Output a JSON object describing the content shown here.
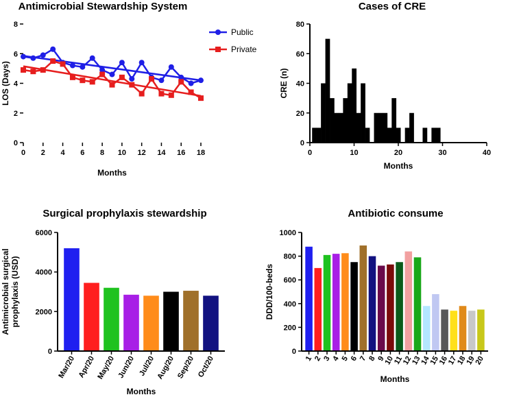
{
  "chart_data": [
    {
      "id": "los",
      "type": "line",
      "title": "Antimicrobial Stewardship System",
      "xlabel": "Months",
      "ylabel": "LOS (Days)",
      "xlim": [
        0,
        18
      ],
      "ylim": [
        0,
        8
      ],
      "xticks": [
        0,
        2,
        4,
        6,
        8,
        10,
        12,
        14,
        16,
        18
      ],
      "yticks": [
        0,
        2,
        4,
        6,
        8
      ],
      "legend_position": "top-right",
      "series": [
        {
          "name": "Public",
          "color": "#1f1fe6",
          "marker": "circle",
          "x": [
            0,
            1,
            2,
            3,
            4,
            5,
            6,
            7,
            8,
            9,
            10,
            11,
            12,
            13,
            14,
            15,
            16,
            17,
            18
          ],
          "values": [
            5.8,
            5.7,
            5.9,
            6.3,
            5.4,
            5.2,
            5.1,
            5.7,
            4.9,
            4.6,
            5.4,
            4.3,
            5.4,
            4.4,
            4.2,
            5.1,
            4.4,
            4.0,
            4.2
          ],
          "trend": [
            5.85,
            4.2
          ]
        },
        {
          "name": "Private",
          "color": "#e61e1e",
          "marker": "square",
          "x": [
            0,
            1,
            2,
            3,
            4,
            5,
            6,
            7,
            8,
            9,
            10,
            11,
            12,
            13,
            14,
            15,
            16,
            17,
            18
          ],
          "values": [
            4.9,
            4.8,
            4.9,
            5.5,
            5.3,
            4.4,
            4.2,
            4.1,
            4.6,
            3.9,
            4.4,
            3.9,
            3.3,
            4.3,
            3.3,
            3.2,
            4.1,
            3.4,
            3.0
          ],
          "trend": [
            5.15,
            3.15
          ]
        }
      ]
    },
    {
      "id": "cre",
      "type": "bar",
      "title": "Cases of CRE",
      "xlabel": "Months",
      "ylabel": "CRE (n)",
      "xlim": [
        0,
        40
      ],
      "ylim": [
        0,
        80
      ],
      "xticks": [
        0,
        10,
        20,
        30,
        40
      ],
      "yticks": [
        0,
        20,
        40,
        60,
        80
      ],
      "color": "#000000",
      "x": [
        1,
        2,
        3,
        4,
        5,
        6,
        7,
        8,
        9,
        10,
        11,
        12,
        13,
        14,
        15,
        16,
        17,
        18,
        19,
        20,
        21,
        22,
        23,
        24,
        25,
        26,
        27,
        28,
        29
      ],
      "values": [
        10,
        10,
        40,
        70,
        30,
        20,
        20,
        30,
        40,
        50,
        20,
        40,
        10,
        0,
        20,
        20,
        20,
        10,
        30,
        10,
        0,
        10,
        20,
        0,
        0,
        10,
        0,
        10,
        10
      ]
    },
    {
      "id": "surgical",
      "type": "bar",
      "title": "Surgical prophylaxis stewardship",
      "xlabel": "Months",
      "ylabel": [
        "Antimicrobial surgical",
        "prophylaxis (USD)"
      ],
      "ylim": [
        0,
        6000
      ],
      "yticks": [
        0,
        2000,
        4000,
        6000
      ],
      "categories": [
        "Mar/20",
        "Apr/20",
        "May/20",
        "Jun/20",
        "Jul/20",
        "Aug/20",
        "Sep/20",
        "Oct/20"
      ],
      "values": [
        5200,
        3450,
        3200,
        2850,
        2800,
        3000,
        3050,
        2800
      ],
      "colors": [
        "#1f1ff0",
        "#ff1f1f",
        "#1fc21f",
        "#a81fe6",
        "#ff8c1a",
        "#000000",
        "#a0702a",
        "#121280"
      ]
    },
    {
      "id": "antibiotic",
      "type": "bar",
      "title": "Antibiotic consume",
      "xlabel": "Months",
      "ylabel": "DDD/100-beds",
      "ylim": [
        0,
        1000
      ],
      "yticks": [
        0,
        200,
        400,
        600,
        800,
        1000
      ],
      "categories": [
        "1",
        "2",
        "3",
        "4",
        "5",
        "6",
        "7",
        "8",
        "9",
        "10",
        "11",
        "12",
        "13",
        "14",
        "15",
        "16",
        "17",
        "18",
        "19",
        "20"
      ],
      "values": [
        880,
        700,
        810,
        820,
        825,
        750,
        890,
        800,
        720,
        730,
        750,
        840,
        790,
        380,
        480,
        350,
        340,
        380,
        340,
        350
      ],
      "colors": [
        "#1f1ff0",
        "#ff1f1f",
        "#1fc21f",
        "#a81fe6",
        "#ff8c1a",
        "#000000",
        "#a0702a",
        "#121280",
        "#6a0a4a",
        "#7a0a0a",
        "#0a5a1a",
        "#f2a0a0",
        "#1aa81a",
        "#b4e6ff",
        "#c0c8f2",
        "#585858",
        "#ffe01a",
        "#e08a1a",
        "#c8c8c8",
        "#c8c81a"
      ]
    }
  ]
}
